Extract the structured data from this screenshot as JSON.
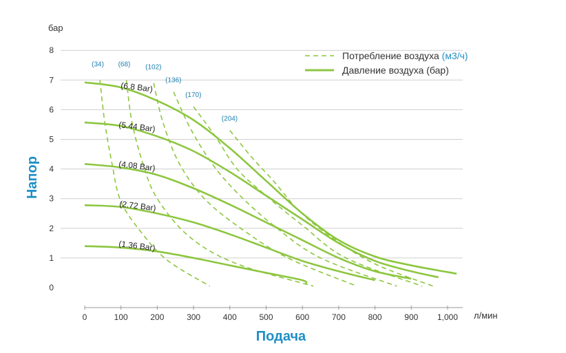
{
  "chart_data": {
    "type": "line",
    "ylabel": "Напор",
    "yunit": "бар",
    "xlabel": "Подача",
    "xunit": "л/мин",
    "xlim": [
      0,
      1050
    ],
    "ylim": [
      0,
      8
    ],
    "xticks": [
      0,
      100,
      200,
      300,
      400,
      500,
      600,
      700,
      800,
      900,
      1000
    ],
    "xtick_labels": [
      "0",
      "100",
      "200",
      "300",
      "400",
      "500",
      "600",
      "700",
      "800",
      "900",
      "1,000"
    ],
    "yticks": [
      0,
      1,
      2,
      3,
      4,
      5,
      6,
      7,
      8
    ],
    "grid": "horizontal",
    "legend": {
      "position": "top-right",
      "entries": [
        {
          "label": "Потребление воздуха ",
          "unit": "(м3/ч)",
          "style": "dashed"
        },
        {
          "label": "Давление воздуха (бар)",
          "style": "solid"
        }
      ]
    },
    "line_color": "#8cc63f",
    "pressure_series": [
      {
        "name": "(6.8 Bar)",
        "points": [
          [
            0,
            6.92
          ],
          [
            100,
            6.75
          ],
          [
            200,
            6.3
          ],
          [
            300,
            5.65
          ],
          [
            400,
            4.7
          ],
          [
            500,
            3.6
          ],
          [
            600,
            2.5
          ],
          [
            700,
            1.6
          ],
          [
            800,
            1.05
          ],
          [
            900,
            0.75
          ],
          [
            1025,
            0.47
          ]
        ]
      },
      {
        "name": "(5.44 Bar)",
        "points": [
          [
            0,
            5.57
          ],
          [
            100,
            5.45
          ],
          [
            200,
            5.1
          ],
          [
            300,
            4.6
          ],
          [
            400,
            3.9
          ],
          [
            500,
            3.1
          ],
          [
            600,
            2.3
          ],
          [
            700,
            1.5
          ],
          [
            800,
            0.9
          ],
          [
            900,
            0.55
          ],
          [
            975,
            0.35
          ]
        ]
      },
      {
        "name": "(4.08 Bar)",
        "points": [
          [
            0,
            4.17
          ],
          [
            100,
            4.05
          ],
          [
            200,
            3.8
          ],
          [
            300,
            3.35
          ],
          [
            400,
            2.8
          ],
          [
            500,
            2.2
          ],
          [
            600,
            1.6
          ],
          [
            700,
            1.0
          ],
          [
            800,
            0.55
          ],
          [
            900,
            0.3
          ]
        ]
      },
      {
        "name": "(2.72 Bar)",
        "points": [
          [
            0,
            2.78
          ],
          [
            100,
            2.72
          ],
          [
            200,
            2.5
          ],
          [
            300,
            2.2
          ],
          [
            400,
            1.8
          ],
          [
            500,
            1.35
          ],
          [
            600,
            0.9
          ],
          [
            700,
            0.55
          ],
          [
            800,
            0.25
          ]
        ]
      },
      {
        "name": "(1.36 Bar)",
        "points": [
          [
            0,
            1.4
          ],
          [
            100,
            1.35
          ],
          [
            200,
            1.22
          ],
          [
            300,
            1.0
          ],
          [
            400,
            0.75
          ],
          [
            500,
            0.5
          ],
          [
            600,
            0.25
          ],
          [
            610,
            0.12
          ]
        ]
      }
    ],
    "air_series": [
      {
        "name": "(34)",
        "points": [
          [
            42,
            7
          ],
          [
            55,
            5.6
          ],
          [
            75,
            4.2
          ],
          [
            100,
            2.9
          ],
          [
            160,
            1.8
          ],
          [
            230,
            0.9
          ],
          [
            345,
            0.05
          ]
        ]
      },
      {
        "name": "(68)",
        "points": [
          [
            115,
            7
          ],
          [
            130,
            5.6
          ],
          [
            160,
            4.2
          ],
          [
            200,
            3.0
          ],
          [
            290,
            1.7
          ],
          [
            420,
            0.8
          ],
          [
            630,
            0.05
          ]
        ]
      },
      {
        "name": "(102)",
        "points": [
          [
            190,
            6.9
          ],
          [
            215,
            5.6
          ],
          [
            260,
            4.2
          ],
          [
            330,
            3.0
          ],
          [
            430,
            2.0
          ],
          [
            560,
            1.0
          ],
          [
            750,
            0.05
          ]
        ]
      },
      {
        "name": "(136)",
        "points": [
          [
            245,
            6.6
          ],
          [
            290,
            5.4
          ],
          [
            350,
            4.2
          ],
          [
            420,
            3.2
          ],
          [
            520,
            2.1
          ],
          [
            650,
            1.0
          ],
          [
            860,
            0.05
          ]
        ]
      },
      {
        "name": "(170)",
        "points": [
          [
            300,
            6.1
          ],
          [
            360,
            5.1
          ],
          [
            420,
            4.0
          ],
          [
            500,
            3.1
          ],
          [
            600,
            2.1
          ],
          [
            720,
            1.0
          ],
          [
            930,
            0.05
          ]
        ]
      },
      {
        "name": "(204)",
        "points": [
          [
            400,
            5.3
          ],
          [
            460,
            4.4
          ],
          [
            520,
            3.6
          ],
          [
            590,
            2.6
          ],
          [
            680,
            1.7
          ],
          [
            800,
            0.8
          ],
          [
            960,
            0.05
          ]
        ]
      }
    ]
  }
}
